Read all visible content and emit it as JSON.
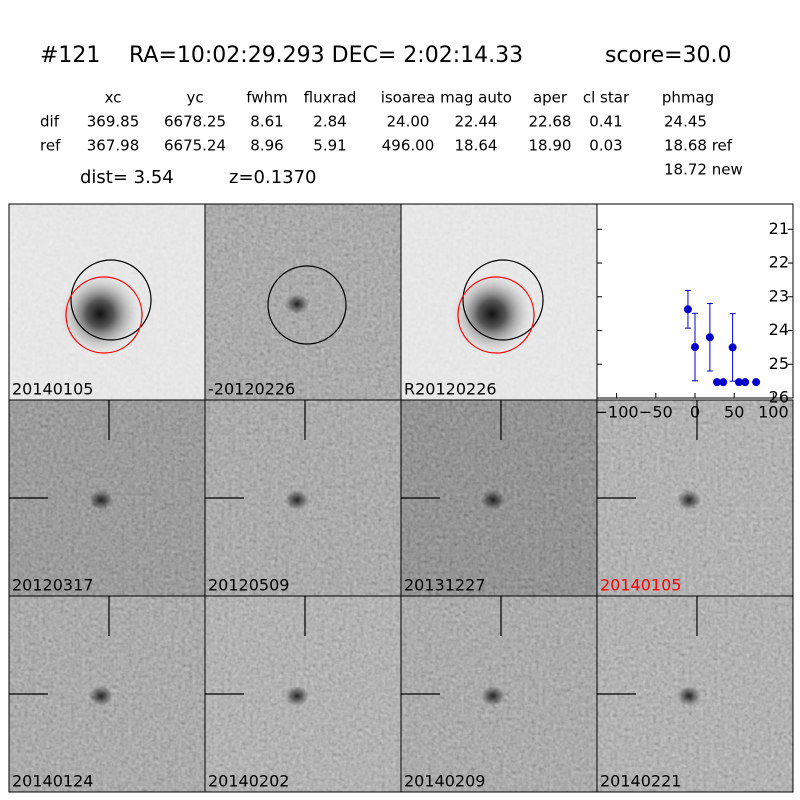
{
  "header": {
    "id": "#121",
    "coords": "RA=10:02:29.293 DEC= 2:02:14.33",
    "score": "score=30.0"
  },
  "table": {
    "columns": [
      "xc",
      "yc",
      "fwhm",
      "fluxrad",
      "isoarea",
      "mag auto",
      "aper",
      "cl star",
      "phmag"
    ],
    "rows": [
      [
        "dif",
        "369.85",
        "6678.25",
        "8.61",
        "2.84",
        "24.00",
        "22.44",
        "22.68",
        "0.41",
        "24.45"
      ],
      [
        "ref",
        "367.98",
        "6675.24",
        "8.96",
        "5.91",
        "496.00",
        "18.64",
        "18.90",
        "0.03",
        "18.68 ref"
      ]
    ],
    "extra": "18.72 new"
  },
  "dist": "dist=  3.54",
  "z": "z=0.1370",
  "panels": [
    {
      "label": "20140105",
      "color": "#000000"
    },
    {
      "label": "-20120226",
      "color": "#000000"
    },
    {
      "label": "R20120226",
      "color": "#000000"
    },
    {
      "label": "20120317",
      "color": "#000000"
    },
    {
      "label": "20120509",
      "color": "#000000"
    },
    {
      "label": "20131227",
      "color": "#000000"
    },
    {
      "label": "20140105",
      "color": "#ff0000"
    },
    {
      "label": "20140124",
      "color": "#000000"
    },
    {
      "label": "20140202",
      "color": "#000000"
    },
    {
      "label": "20140209",
      "color": "#000000"
    },
    {
      "label": "20140221",
      "color": "#000000"
    }
  ],
  "chart_data": {
    "type": "scatter",
    "x": [
      -9,
      0,
      19,
      28,
      36,
      48,
      56,
      64,
      78
    ],
    "values": [
      23.37,
      24.49,
      24.2,
      25.53,
      25.53,
      24.5,
      25.53,
      25.53,
      25.53
    ],
    "errors": [
      0.56,
      1.0,
      1.0,
      0.05,
      0.05,
      1.0,
      0.05,
      0.05,
      0.05
    ],
    "color": "#0000cc",
    "xlim": [
      -125,
      125
    ],
    "ylim": [
      26,
      20.25
    ],
    "xticks": [
      {
        "value": -100,
        "label": "−100"
      },
      {
        "value": -50,
        "label": "−50"
      },
      0,
      50,
      100
    ],
    "yticks": [
      21,
      22,
      23,
      24,
      25,
      26
    ]
  }
}
